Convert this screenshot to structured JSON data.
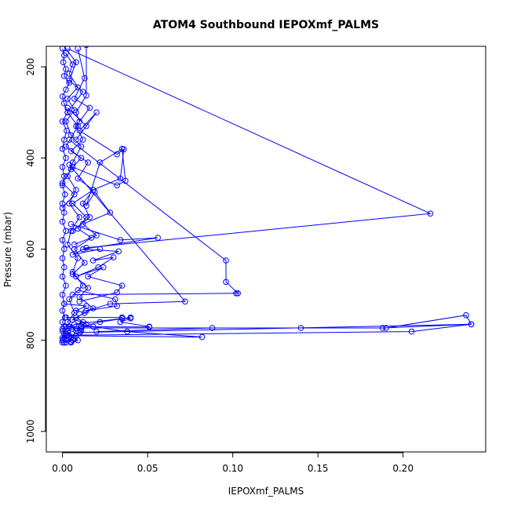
{
  "chart_data": {
    "type": "line",
    "title": "ATOM4 Southbound IEPOXmf_PALMS",
    "xlabel": "IEPOXmf_PALMS",
    "ylabel": "Pressure (mbar)",
    "xlim": [
      -0.0095,
      0.2485
    ],
    "ylim": [
      1045,
      155
    ],
    "y_reversed": true,
    "grid": false,
    "legend": "none",
    "xticks": [
      0.0,
      0.05,
      0.1,
      0.15,
      0.2
    ],
    "xtick_labels": [
      "0.00",
      "0.05",
      "0.10",
      "0.15",
      "0.20"
    ],
    "yticks": [
      200,
      400,
      600,
      800,
      1000
    ],
    "ytick_labels": [
      "200",
      "400",
      "600",
      "800",
      "1000"
    ],
    "color": "#0000ff",
    "series": [
      {
        "x": [
          0.0,
          0.001,
          0.0005,
          0.002,
          0.001,
          0.004,
          0.002,
          0.0,
          0.001,
          0.003,
          0.0,
          0.0025,
          0.001,
          0.0,
          0.002,
          0.0,
          0.001,
          0.0,
          0.0015,
          0.0,
          0.001,
          0.0,
          0.002,
          0.0,
          0.001,
          0.0,
          0.001,
          0.0,
          0.002,
          0.0,
          0.001,
          0.0,
          0.0015,
          0.0,
          0.001,
          0.0,
          0.002,
          0.0,
          0.001,
          0.0,
          0.001,
          0.0
        ],
        "y": [
          160,
          175,
          190,
          205,
          220,
          235,
          250,
          265,
          280,
          300,
          320,
          340,
          360,
          380,
          400,
          420,
          440,
          460,
          480,
          500,
          520,
          540,
          560,
          580,
          600,
          620,
          640,
          660,
          680,
          700,
          720,
          735,
          750,
          760,
          770,
          780,
          790,
          800,
          805,
          795,
          785,
          775
        ]
      },
      {
        "x": [
          0.002,
          0.006,
          0.004,
          0.009,
          0.003,
          0.007,
          0.002,
          0.005,
          0.011,
          0.006,
          0.003,
          0.008,
          0.004,
          0.01,
          0.005,
          0.003,
          0.009,
          0.006,
          0.012,
          0.004,
          0.007,
          0.003,
          0.008,
          0.005,
          0.002
        ],
        "y": [
          170,
          195,
          215,
          245,
          270,
          295,
          320,
          350,
          375,
          410,
          440,
          470,
          500,
          530,
          560,
          590,
          620,
          650,
          680,
          710,
          740,
          760,
          780,
          795,
          805
        ]
      },
      {
        "x": [
          0.009,
          0.013,
          0.007,
          0.016,
          0.008,
          0.012,
          0.005,
          0.015,
          0.009,
          0.018,
          0.006,
          0.014,
          0.009,
          0.017,
          0.007,
          0.013,
          0.006,
          0.015,
          0.01,
          0.018,
          0.008,
          0.014,
          0.011,
          0.007,
          0.009,
          0.005
        ],
        "y": [
          160,
          225,
          270,
          290,
          330,
          360,
          385,
          410,
          445,
          470,
          500,
          530,
          555,
          575,
          600,
          630,
          655,
          685,
          705,
          730,
          750,
          765,
          780,
          795,
          800,
          805
        ]
      },
      {
        "x": [
          0.003,
          0.014,
          0.008,
          0.02,
          0.01,
          0.032,
          0.036,
          0.034,
          0.018,
          0.012,
          0.016,
          0.006
        ],
        "y": [
          290,
          330,
          360,
          300,
          340,
          392,
          381,
          445,
          470,
          500,
          530,
          560
        ]
      },
      {
        "x": [
          0.006,
          0.032,
          0.037,
          0.035,
          0.022,
          0.014,
          0.019,
          0.028,
          0.012,
          0.02,
          0.007
        ],
        "y": [
          420,
          460,
          450,
          380,
          410,
          505,
          475,
          520,
          545,
          570,
          590
        ]
      },
      {
        "x": [
          0.003,
          0.216,
          0.014,
          0.006,
          0.022
        ],
        "y": [
          160,
          522,
          597,
          612,
          600
        ]
      },
      {
        "x": [
          0.005,
          0.034,
          0.056,
          0.012,
          0.033,
          0.018,
          0.03,
          0.021,
          0.008,
          0.024,
          0.015,
          0.035,
          0.032,
          0.01
        ],
        "y": [
          545,
          580,
          575,
          600,
          605,
          625,
          618,
          640,
          660,
          640,
          660,
          680,
          695,
          715
        ]
      },
      {
        "x": [
          0.004,
          0.096,
          0.096,
          0.103,
          0.102,
          0.006
        ],
        "y": [
          360,
          625,
          672,
          697,
          697,
          700
        ]
      },
      {
        "x": [
          0.004,
          0.072,
          0.028,
          0.014,
          0.032,
          0.031,
          0.009
        ],
        "y": [
          415,
          715,
          720,
          735,
          725,
          710,
          690
        ]
      },
      {
        "x": [
          0.002,
          0.035,
          0.035,
          0.04,
          0.034,
          0.051,
          0.051,
          0.002
        ],
        "y": [
          750,
          750,
          752,
          752,
          760,
          770,
          771,
          770
        ]
      },
      {
        "x": [
          0.004,
          0.082,
          0.038,
          0.018,
          0.007,
          0.04,
          0.022,
          0.011,
          0.003
        ],
        "y": [
          790,
          793,
          781,
          770,
          765,
          750,
          760,
          770,
          780
        ]
      },
      {
        "x": [
          0.003,
          0.188,
          0.24,
          0.237,
          0.19,
          0.14,
          0.088,
          0.02
        ],
        "y": [
          773,
          773,
          765,
          745,
          773,
          773,
          773,
          781
        ]
      },
      {
        "x": [
          0.003,
          0.205,
          0.24,
          0.01
        ],
        "y": [
          789,
          781,
          765,
          783
        ]
      },
      {
        "x": [
          0.001,
          0.014,
          0.008,
          0.013,
          0.006,
          0.012,
          0.004,
          0.011,
          0.002,
          0.008,
          0.001,
          0.006,
          0.0,
          0.005
        ],
        "y": [
          720,
          725,
          735,
          740,
          755,
          760,
          770,
          775,
          785,
          790,
          795,
          800,
          805,
          803
        ]
      },
      {
        "x": [
          0.0,
          0.008,
          0.004,
          0.012,
          0.003,
          0.009,
          0.002,
          0.011,
          0.005,
          0.0,
          0.007,
          0.0
        ],
        "y": [
          150,
          190,
          230,
          255,
          300,
          330,
          375,
          400,
          425,
          455,
          480,
          510
        ]
      },
      {
        "x": [
          0.014,
          0.014,
          0.008,
          0.01
        ],
        "y": [
          152,
          263,
          300,
          320
        ]
      }
    ]
  }
}
